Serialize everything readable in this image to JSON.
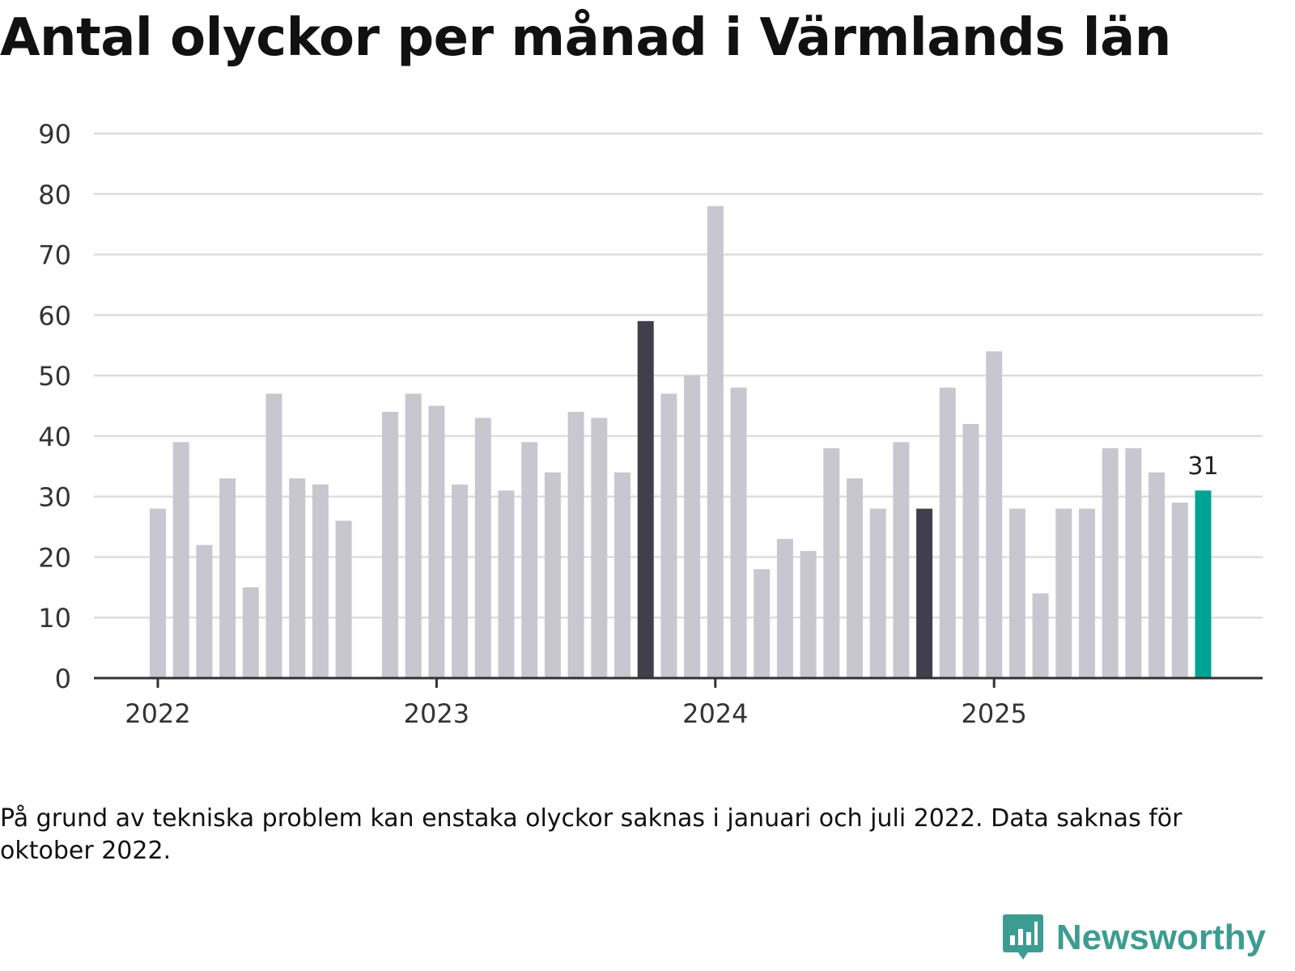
{
  "title": "Antal olyckor per månad i Värmlands län",
  "footnote": "På grund av tekniska problem kan enstaka olyckor saknas i januari och juli 2022. Data saknas för oktober 2022.",
  "brand": "Newsworthy",
  "colors": {
    "default": "#c8c7d0",
    "highlight": "#403f4b",
    "latest": "#00a396",
    "grid": "#dddddd",
    "axis": "#333333",
    "text": "#333333",
    "brand": "#3d9c92"
  },
  "chart_data": {
    "type": "bar",
    "title": "Antal olyckor per månad i Värmlands län",
    "xlabel": "",
    "ylabel": "",
    "ylim": [
      0,
      90
    ],
    "yticks": [
      0,
      10,
      20,
      30,
      40,
      50,
      60,
      70,
      80,
      90
    ],
    "xticks": [
      {
        "label": "2022",
        "category": "2022-01"
      },
      {
        "label": "2023",
        "category": "2023-01"
      },
      {
        "label": "2024",
        "category": "2024-01"
      },
      {
        "label": "2025",
        "category": "2025-01"
      }
    ],
    "categories": [
      "2022-01",
      "2022-02",
      "2022-03",
      "2022-04",
      "2022-05",
      "2022-06",
      "2022-07",
      "2022-08",
      "2022-09",
      "2022-10",
      "2022-11",
      "2022-12",
      "2023-01",
      "2023-02",
      "2023-03",
      "2023-04",
      "2023-05",
      "2023-06",
      "2023-07",
      "2023-08",
      "2023-09",
      "2023-10",
      "2023-11",
      "2023-12",
      "2024-01",
      "2024-02",
      "2024-03",
      "2024-04",
      "2024-05",
      "2024-06",
      "2024-07",
      "2024-08",
      "2024-09",
      "2024-10",
      "2024-11",
      "2024-12",
      "2025-01",
      "2025-02",
      "2025-03",
      "2025-04",
      "2025-05",
      "2025-06",
      "2025-07",
      "2025-08",
      "2025-09",
      "2025-10"
    ],
    "values": [
      28,
      39,
      22,
      33,
      15,
      47,
      33,
      32,
      26,
      null,
      44,
      47,
      45,
      32,
      43,
      31,
      39,
      34,
      44,
      43,
      34,
      59,
      47,
      50,
      78,
      48,
      18,
      23,
      21,
      38,
      33,
      28,
      39,
      28,
      48,
      42,
      54,
      28,
      14,
      28,
      28,
      38,
      38,
      34,
      29,
      31
    ],
    "highlighted": [
      "2023-10",
      "2024-10"
    ],
    "latest": "2025-10",
    "latest_label": "31"
  }
}
